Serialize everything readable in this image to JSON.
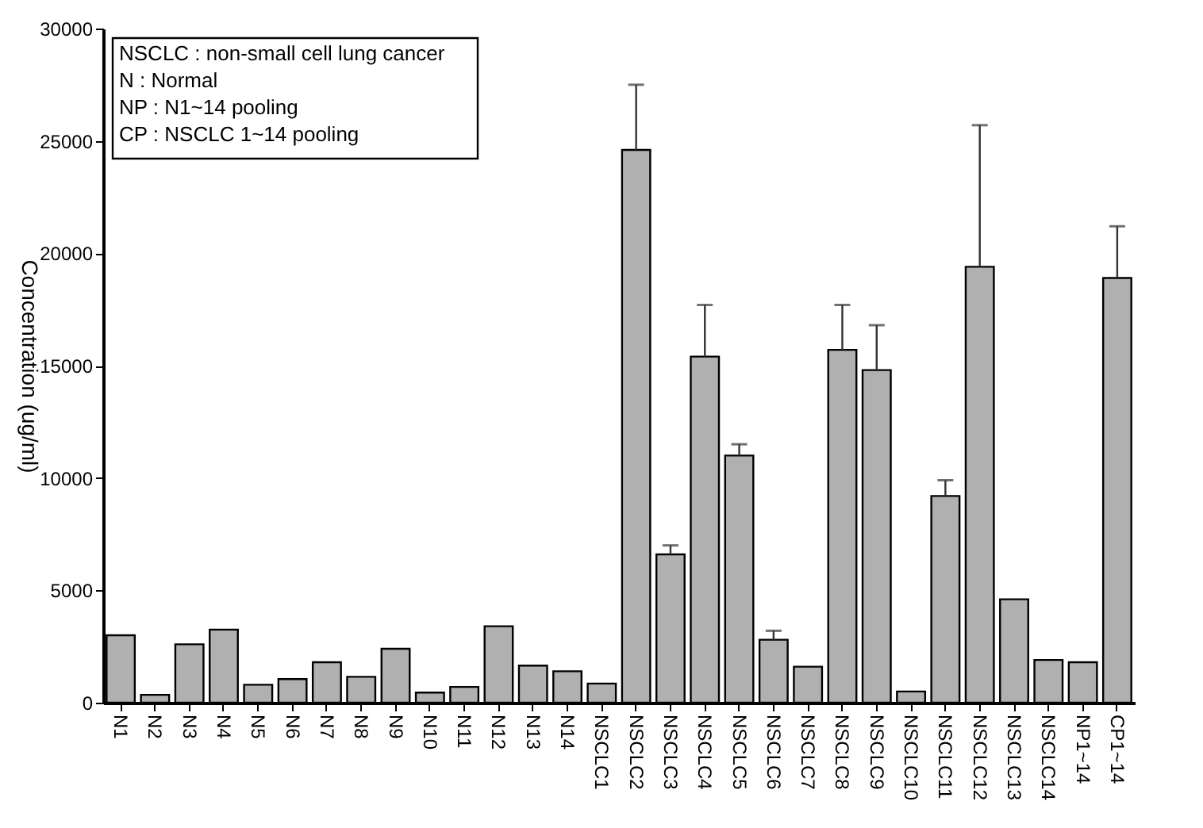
{
  "chart_data": {
    "type": "bar",
    "ylabel": "Concentration (ug/ml)",
    "categories": [
      "N1",
      "N2",
      "N3",
      "N4",
      "N5",
      "N6",
      "N7",
      "N8",
      "N9",
      "N10",
      "N11",
      "N12",
      "N13",
      "N14",
      "NSCLC1",
      "NSCLC2",
      "NSCLC3",
      "NSCLC4",
      "NSCLC5",
      "NSCLC6",
      "NSCLC7",
      "NSCLC8",
      "NSCLC9",
      "NSCLC10",
      "NSCLC11",
      "NSCLC12",
      "NSCLC13",
      "NSCLC14",
      "NP1~14",
      "CP1~14"
    ],
    "values": [
      3000,
      350,
      2600,
      3250,
      800,
      1050,
      1800,
      1150,
      2400,
      450,
      700,
      3400,
      1650,
      1400,
      850,
      24600,
      6600,
      15400,
      11000,
      2800,
      1600,
      15700,
      14800,
      500,
      9200,
      19400,
      4600,
      1900,
      1800,
      18900
    ],
    "errors": [
      null,
      null,
      null,
      null,
      null,
      null,
      null,
      null,
      null,
      null,
      null,
      null,
      null,
      null,
      null,
      2900,
      400,
      2300,
      500,
      400,
      null,
      2000,
      2000,
      null,
      700,
      6300,
      null,
      null,
      null,
      2300
    ],
    "color": "#b0b0b0",
    "ylim": [
      0,
      30000
    ],
    "yticks": [
      0,
      5000,
      10000,
      15000,
      20000,
      25000,
      30000
    ],
    "grid": false,
    "annotations": [
      "NSCLC : non-small cell lung cancer",
      "N : Normal",
      "NP : N1~14 pooling",
      "CP : NSCLC 1~14 pooling"
    ]
  }
}
